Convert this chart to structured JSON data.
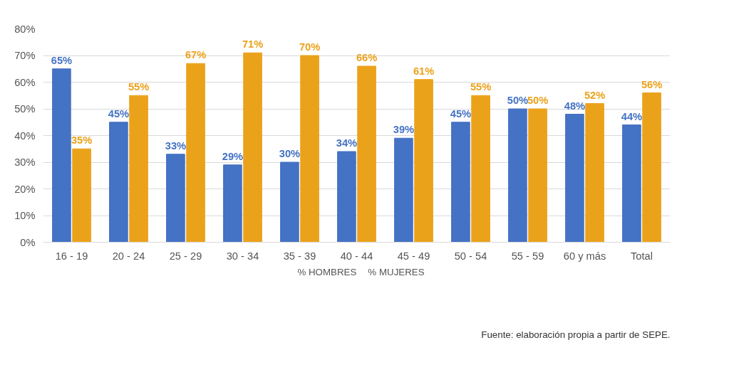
{
  "chart_data": {
    "type": "bar",
    "categories": [
      "16 - 19",
      "20 - 24",
      "25 - 29",
      "30 - 34",
      "35 - 39",
      "40 - 44",
      "45 - 49",
      "50 - 54",
      "55 - 59",
      "60 y más",
      "Total"
    ],
    "series": [
      {
        "name": "% HOMBRES",
        "color": "#4472c4",
        "values": [
          65,
          45,
          33,
          29,
          30,
          34,
          39,
          45,
          50,
          48,
          44
        ],
        "value_labels": [
          "65%",
          "45%",
          "33%",
          "29%",
          "30%",
          "34%",
          "39%",
          "45%",
          "50%",
          "48%",
          "44%"
        ]
      },
      {
        "name": "% MUJERES",
        "color": "#eba21b",
        "values": [
          35,
          55,
          67,
          71,
          70,
          66,
          61,
          55,
          50,
          52,
          56
        ],
        "value_labels": [
          "35%",
          "55%",
          "67%",
          "71%",
          "70%",
          "66%",
          "61%",
          "55%",
          "50%",
          "52%",
          "56%"
        ]
      }
    ],
    "ylim": [
      0,
      80
    ],
    "yticks": [
      {
        "value": 0,
        "label": "0%"
      },
      {
        "value": 10,
        "label": "10%"
      },
      {
        "value": 20,
        "label": "20%"
      },
      {
        "value": 30,
        "label": "30%"
      },
      {
        "value": 40,
        "label": "40%"
      },
      {
        "value": 50,
        "label": "50%"
      },
      {
        "value": 60,
        "label": "60%"
      },
      {
        "value": 70,
        "label": "70%"
      },
      {
        "value": 80,
        "label": "80%"
      }
    ],
    "grid": "y",
    "legend": "bottom",
    "annotations": [
      "Fuente: elaboración propia a partir de SEPE."
    ]
  }
}
